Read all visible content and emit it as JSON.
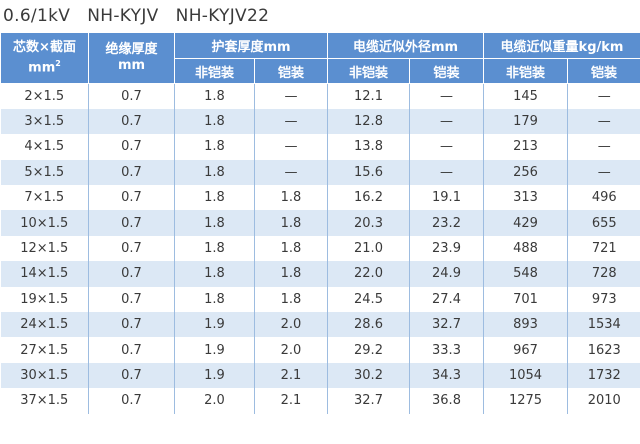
{
  "title": "0.6/1kV   NH-KYJV   NH-KYJV22",
  "header": {
    "col1_line1": "芯数×截面",
    "col1_line2": "mm",
    "col1_sup": "2",
    "col2_line1": "绝缘厚度",
    "col2_line2": "mm",
    "group_sheath": "护套厚度mm",
    "group_diameter": "电缆近似外径mm",
    "group_weight": "电缆近似重量kg/km",
    "sub_unarmored": "非铠装",
    "sub_armored": "铠装"
  },
  "rows": [
    [
      "2×1.5",
      "0.7",
      "1.8",
      "—",
      "12.1",
      "—",
      "145",
      "—"
    ],
    [
      "3×1.5",
      "0.7",
      "1.8",
      "—",
      "12.8",
      "—",
      "179",
      "—"
    ],
    [
      "4×1.5",
      "0.7",
      "1.8",
      "—",
      "13.8",
      "—",
      "213",
      "—"
    ],
    [
      "5×1.5",
      "0.7",
      "1.8",
      "—",
      "15.6",
      "—",
      "256",
      "—"
    ],
    [
      "7×1.5",
      "0.7",
      "1.8",
      "1.8",
      "16.2",
      "19.1",
      "313",
      "496"
    ],
    [
      "10×1.5",
      "0.7",
      "1.8",
      "1.8",
      "20.3",
      "23.2",
      "429",
      "655"
    ],
    [
      "12×1.5",
      "0.7",
      "1.8",
      "1.8",
      "21.0",
      "23.9",
      "488",
      "721"
    ],
    [
      "14×1.5",
      "0.7",
      "1.8",
      "1.8",
      "22.0",
      "24.9",
      "548",
      "728"
    ],
    [
      "19×1.5",
      "0.7",
      "1.8",
      "1.8",
      "24.5",
      "27.4",
      "701",
      "973"
    ],
    [
      "24×1.5",
      "0.7",
      "1.9",
      "2.0",
      "28.6",
      "32.7",
      "893",
      "1534"
    ],
    [
      "27×1.5",
      "0.7",
      "1.9",
      "2.0",
      "29.2",
      "33.3",
      "967",
      "1623"
    ],
    [
      "30×1.5",
      "0.7",
      "1.9",
      "2.1",
      "30.2",
      "34.3",
      "1054",
      "1732"
    ],
    [
      "37×1.5",
      "0.7",
      "2.0",
      "2.1",
      "32.7",
      "36.8",
      "1275",
      "2010"
    ]
  ]
}
